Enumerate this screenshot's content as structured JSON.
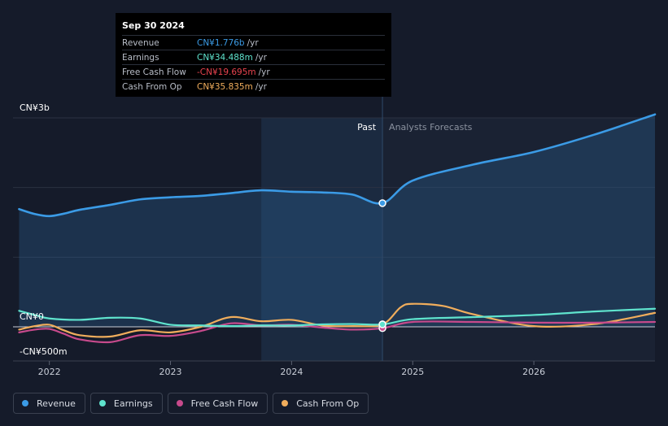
{
  "tooltip": {
    "date": "Sep 30 2024",
    "rows": [
      {
        "label": "Revenue",
        "value": "CN¥1.776b",
        "unit": "/yr",
        "color": "#3b9be6"
      },
      {
        "label": "Earnings",
        "value": "CN¥34.488m",
        "unit": "/yr",
        "color": "#5fe3cd"
      },
      {
        "label": "Free Cash Flow",
        "value": "-CN¥19.695m",
        "unit": "/yr",
        "color": "#e8434e"
      },
      {
        "label": "Cash From Op",
        "value": "CN¥35.835m",
        "unit": "/yr",
        "color": "#f0ad5c"
      }
    ]
  },
  "labels": {
    "past": "Past",
    "forecast": "Analysts Forecasts"
  },
  "legend": [
    {
      "label": "Revenue",
      "color": "#3b9be6"
    },
    {
      "label": "Earnings",
      "color": "#5fe3cd"
    },
    {
      "label": "Free Cash Flow",
      "color": "#c74a8c"
    },
    {
      "label": "Cash From Op",
      "color": "#f0ad5c"
    }
  ],
  "chart_data": {
    "type": "line",
    "ylim": [
      -500,
      3000
    ],
    "yticks": [
      {
        "value": 3000,
        "label": "CN¥3b"
      },
      {
        "value": 0,
        "label": "CN¥0"
      },
      {
        "value": -500,
        "label": "-CN¥500m"
      }
    ],
    "xlim": [
      2021.7,
      2027.0
    ],
    "xticks": [
      {
        "value": 2022,
        "label": "2022"
      },
      {
        "value": 2023,
        "label": "2023"
      },
      {
        "value": 2024,
        "label": "2024"
      },
      {
        "value": 2025,
        "label": "2025"
      },
      {
        "value": 2026,
        "label": "2026"
      }
    ],
    "past_end": 2024.75,
    "highlight_start": 2023.75,
    "series": [
      {
        "name": "Revenue",
        "color": "#3b9be6",
        "highlight": 1776,
        "points": [
          [
            2021.75,
            1690
          ],
          [
            2021.88,
            1620
          ],
          [
            2022.0,
            1590
          ],
          [
            2022.12,
            1625
          ],
          [
            2022.25,
            1680
          ],
          [
            2022.5,
            1750
          ],
          [
            2022.75,
            1830
          ],
          [
            2023.0,
            1860
          ],
          [
            2023.25,
            1880
          ],
          [
            2023.5,
            1920
          ],
          [
            2023.75,
            1960
          ],
          [
            2024.0,
            1940
          ],
          [
            2024.25,
            1930
          ],
          [
            2024.5,
            1900
          ],
          [
            2024.75,
            1776
          ],
          [
            2025.0,
            2100
          ],
          [
            2025.5,
            2330
          ],
          [
            2026.0,
            2510
          ],
          [
            2026.5,
            2760
          ],
          [
            2027.0,
            3050
          ]
        ]
      },
      {
        "name": "Earnings",
        "color": "#5fe3cd",
        "highlight": 34.488,
        "points": [
          [
            2021.75,
            230
          ],
          [
            2021.88,
            170
          ],
          [
            2022.0,
            120
          ],
          [
            2022.25,
            100
          ],
          [
            2022.5,
            130
          ],
          [
            2022.75,
            120
          ],
          [
            2023.0,
            30
          ],
          [
            2023.25,
            20
          ],
          [
            2023.5,
            10
          ],
          [
            2023.75,
            20
          ],
          [
            2024.0,
            20
          ],
          [
            2024.25,
            35
          ],
          [
            2024.5,
            40
          ],
          [
            2024.75,
            34
          ],
          [
            2025.0,
            110
          ],
          [
            2025.5,
            140
          ],
          [
            2026.0,
            170
          ],
          [
            2026.5,
            220
          ],
          [
            2027.0,
            260
          ]
        ]
      },
      {
        "name": "Free Cash Flow",
        "color": "#c74a8c",
        "highlight": -19.695,
        "points": [
          [
            2021.75,
            -80
          ],
          [
            2021.88,
            -40
          ],
          [
            2022.0,
            -30
          ],
          [
            2022.12,
            -100
          ],
          [
            2022.25,
            -180
          ],
          [
            2022.5,
            -220
          ],
          [
            2022.75,
            -120
          ],
          [
            2023.0,
            -130
          ],
          [
            2023.25,
            -60
          ],
          [
            2023.5,
            50
          ],
          [
            2023.75,
            20
          ],
          [
            2024.0,
            30
          ],
          [
            2024.25,
            -10
          ],
          [
            2024.5,
            -40
          ],
          [
            2024.75,
            -20
          ],
          [
            2025.0,
            70
          ],
          [
            2025.5,
            70
          ],
          [
            2026.0,
            60
          ],
          [
            2026.5,
            60
          ],
          [
            2027.0,
            70
          ]
        ]
      },
      {
        "name": "Cash From Op",
        "color": "#f0ad5c",
        "highlight": 35.835,
        "points": [
          [
            2021.75,
            -40
          ],
          [
            2021.88,
            10
          ],
          [
            2022.0,
            30
          ],
          [
            2022.12,
            -50
          ],
          [
            2022.25,
            -120
          ],
          [
            2022.5,
            -140
          ],
          [
            2022.75,
            -50
          ],
          [
            2023.0,
            -80
          ],
          [
            2023.25,
            0
          ],
          [
            2023.5,
            140
          ],
          [
            2023.75,
            80
          ],
          [
            2024.0,
            100
          ],
          [
            2024.25,
            20
          ],
          [
            2024.5,
            10
          ],
          [
            2024.75,
            36
          ],
          [
            2024.9,
            280
          ],
          [
            2025.0,
            330
          ],
          [
            2025.25,
            300
          ],
          [
            2025.5,
            180
          ],
          [
            2026.0,
            10
          ],
          [
            2026.5,
            40
          ],
          [
            2027.0,
            200
          ]
        ]
      }
    ]
  }
}
